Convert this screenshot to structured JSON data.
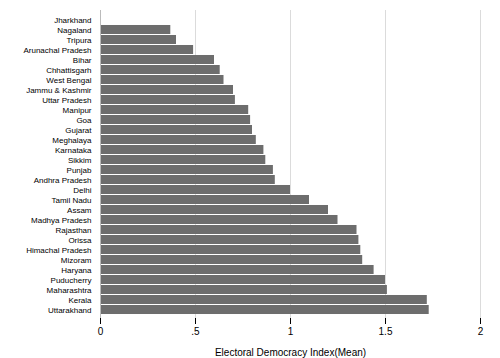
{
  "chart_data": {
    "type": "bar",
    "orientation": "horizontal",
    "categories": [
      "Jharkhand",
      "Nagaland",
      "Tripura",
      "Arunachal Pradesh",
      "Bihar",
      "Chhattisgarh",
      "West Bengal",
      "Jammu & Kashmir",
      "Uttar Pradesh",
      "Manipur",
      "Goa",
      "Gujarat",
      "Meghalaya",
      "Karnataka",
      "Sikkim",
      "Punjab",
      "Andhra Pradesh",
      "Delhi",
      "Tamil Nadu",
      "Assam",
      "Madhya Pradesh",
      "Rajasthan",
      "Orissa",
      "Himachal Pradesh",
      "Mizoram",
      "Haryana",
      "Puducherry",
      "Maharashtra",
      "Kerala",
      "Uttarakhand"
    ],
    "values": [
      0.0,
      0.37,
      0.4,
      0.49,
      0.6,
      0.63,
      0.65,
      0.7,
      0.71,
      0.78,
      0.79,
      0.8,
      0.82,
      0.86,
      0.87,
      0.91,
      0.92,
      1.0,
      1.1,
      1.2,
      1.25,
      1.35,
      1.36,
      1.37,
      1.38,
      1.44,
      1.5,
      1.51,
      1.72,
      1.73
    ],
    "color": "#6d6d6d",
    "xlabel": "Electoral Democracy Index(Mean)",
    "xlim": [
      0,
      2
    ],
    "xticks": [
      0,
      {
        "value": 0.5,
        "label": ".5"
      },
      1,
      1.5,
      2
    ],
    "grid": true
  }
}
